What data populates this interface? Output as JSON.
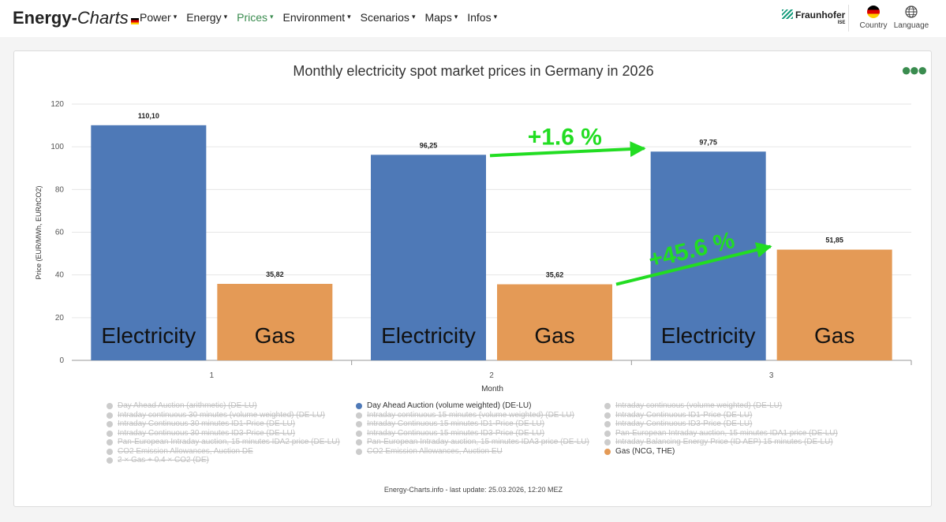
{
  "header": {
    "logo_bold": "Energy-",
    "logo_italic": "Charts",
    "nav": [
      "Power",
      "Energy",
      "Prices",
      "Environment",
      "Scenarios",
      "Maps",
      "Infos"
    ],
    "active_nav": "Prices",
    "fraunhofer": "Fraunhofer",
    "fraunhofer_sub": "ISE",
    "country_label": "Country",
    "language_label": "Language"
  },
  "chart_data": {
    "type": "bar",
    "title": "Monthly electricity spot market prices in Germany in 2026",
    "xlabel": "Month",
    "ylabel": "Price (EUR/MWh, EUR/tCO2)",
    "categories": [
      "1",
      "2",
      "3"
    ],
    "ylim": [
      0,
      120
    ],
    "yticks": [
      0,
      20,
      40,
      60,
      80,
      100,
      120
    ],
    "series": [
      {
        "name": "Day Ahead Auction (volume weighted) (DE-LU)",
        "color": "#4e79b7",
        "values": [
          110.1,
          96.25,
          97.75
        ],
        "labels": [
          "110,10",
          "96,25",
          "97,75"
        ],
        "annotation": "Electricity"
      },
      {
        "name": "Gas (NCG, THE)",
        "color": "#e49a56",
        "values": [
          35.82,
          35.62,
          51.85
        ],
        "labels": [
          "35,82",
          "35,62",
          "51,85"
        ],
        "annotation": "Gas"
      }
    ],
    "arrows": [
      {
        "label": "+1.6 %",
        "from": "Day Ahead Auction month 2",
        "to": "Day Ahead Auction month 3"
      },
      {
        "label": "+45.6 %",
        "from": "Gas month 2",
        "to": "Gas month 3"
      }
    ],
    "arrow_color": "#22dd22"
  },
  "legend": {
    "col1": [
      {
        "label": "Day Ahead Auction (arithmetic) (DE-LU)",
        "active": false
      },
      {
        "label": "Intraday continuous 30 minutes (volume weighted) (DE-LU)",
        "active": false
      },
      {
        "label": "Intraday Continuous 30 minutes ID1-Price (DE-LU)",
        "active": false
      },
      {
        "label": "Intraday Continuous 30 minutes ID3-Price (DE-LU)",
        "active": false
      },
      {
        "label": "Pan-European Intraday auction, 15 minutes IDA2 price (DE-LU)",
        "active": false
      },
      {
        "label": "CO2 Emission Allowances, Auction DE",
        "active": false
      },
      {
        "label": "2 × Gas + 0.4 × CO2 (DE)",
        "active": false
      }
    ],
    "col2": [
      {
        "label": "Day Ahead Auction (volume weighted) (DE-LU)",
        "active": true,
        "color": "#4e79b7"
      },
      {
        "label": "Intraday continuous 15 minutes (volume weighted) (DE-LU)",
        "active": false
      },
      {
        "label": "Intraday Continuous 15 minutes ID1-Price (DE-LU)",
        "active": false
      },
      {
        "label": "Intraday Continuous 15 minutes ID3-Price (DE-LU)",
        "active": false
      },
      {
        "label": "Pan-European Intraday auction, 15 minutes IDA3 price (DE-LU)",
        "active": false
      },
      {
        "label": "CO2 Emission Allowances, Auction EU",
        "active": false
      }
    ],
    "col3": [
      {
        "label": "Intraday continuous (volume weighted) (DE-LU)",
        "active": false
      },
      {
        "label": "Intraday Continuous ID1-Price (DE-LU)",
        "active": false
      },
      {
        "label": "Intraday Continuous ID3-Price (DE-LU)",
        "active": false
      },
      {
        "label": "Pan-European Intraday auction, 15 minutes IDA1 price (DE-LU)",
        "active": false
      },
      {
        "label": "Intraday Balancing Energy Price (ID AEP) 15 minutes (DE-LU)",
        "active": false
      },
      {
        "label": "Gas (NCG, THE)",
        "active": true,
        "color": "#e49a56"
      }
    ]
  },
  "footer": "Energy-Charts.info - last update: 25.03.2026, 12:20 MEZ"
}
